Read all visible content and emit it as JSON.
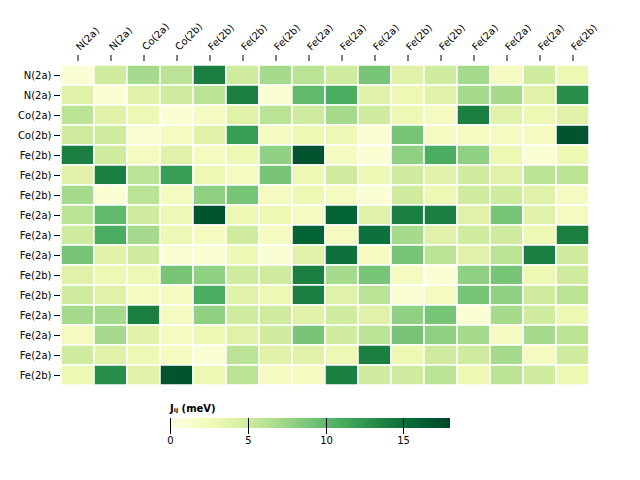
{
  "chart_data": {
    "type": "heatmap",
    "categories": [
      "N(2a)",
      "N(2a)",
      "Co(2a)",
      "Co(2b)",
      "Fe(2b)",
      "Fe(2b)",
      "Fe(2b)",
      "Fe(2a)",
      "Fe(2a)",
      "Fe(2a)",
      "Fe(2b)",
      "Fe(2b)",
      "Fe(2a)",
      "Fe(2a)",
      "Fe(2a)",
      "Fe(2b)"
    ],
    "matrix": [
      [
        1,
        5,
        7,
        6,
        14,
        5,
        7,
        6,
        5,
        9,
        4,
        5,
        7,
        2,
        5,
        3
      ],
      [
        4,
        1,
        4,
        5,
        6,
        14,
        1,
        10,
        11,
        4,
        3,
        4,
        7,
        7,
        4,
        13
      ],
      [
        6,
        4,
        3,
        1,
        2,
        4,
        6,
        5,
        7,
        5,
        3,
        2,
        14,
        4,
        3,
        4
      ],
      [
        5,
        5,
        1,
        2,
        4,
        12,
        2,
        3,
        3,
        1,
        9,
        2,
        2,
        2,
        2,
        17
      ],
      [
        14,
        5,
        2,
        4,
        2,
        3,
        8,
        17,
        2,
        1,
        8,
        11,
        8,
        3,
        1,
        3
      ],
      [
        4,
        14,
        6,
        12,
        3,
        2,
        9,
        3,
        5,
        3,
        5,
        4,
        5,
        4,
        6,
        6
      ],
      [
        7,
        1,
        6,
        2,
        8,
        9,
        2,
        3,
        2,
        1,
        5,
        3,
        5,
        5,
        4,
        2
      ],
      [
        6,
        10,
        5,
        3,
        17,
        3,
        3,
        2,
        16,
        4,
        14,
        14,
        4,
        9,
        4,
        2
      ],
      [
        5,
        11,
        7,
        3,
        2,
        5,
        2,
        16,
        2,
        15,
        7,
        4,
        5,
        5,
        3,
        14
      ],
      [
        9,
        4,
        5,
        1,
        1,
        3,
        1,
        4,
        15,
        2,
        9,
        6,
        4,
        6,
        14,
        5
      ],
      [
        4,
        3,
        3,
        9,
        8,
        5,
        5,
        14,
        7,
        9,
        2,
        1,
        8,
        9,
        3,
        5
      ],
      [
        5,
        4,
        2,
        2,
        11,
        4,
        3,
        14,
        4,
        6,
        1,
        2,
        9,
        8,
        5,
        6
      ],
      [
        7,
        7,
        14,
        2,
        8,
        5,
        5,
        4,
        5,
        4,
        8,
        9,
        1,
        7,
        5,
        3
      ],
      [
        2,
        7,
        4,
        2,
        3,
        4,
        5,
        9,
        5,
        6,
        9,
        8,
        7,
        2,
        7,
        6
      ],
      [
        5,
        4,
        3,
        2,
        1,
        6,
        4,
        4,
        3,
        14,
        3,
        5,
        5,
        7,
        2,
        5
      ],
      [
        3,
        13,
        4,
        17,
        3,
        6,
        2,
        2,
        14,
        5,
        5,
        6,
        3,
        6,
        5,
        3
      ]
    ],
    "color": "YlGn",
    "colorbar_range": [
      0,
      18
    ],
    "colorbar_ticks": [
      0,
      5,
      10,
      15
    ],
    "colorbar_label": "Jᵢⱼ (meV)"
  }
}
